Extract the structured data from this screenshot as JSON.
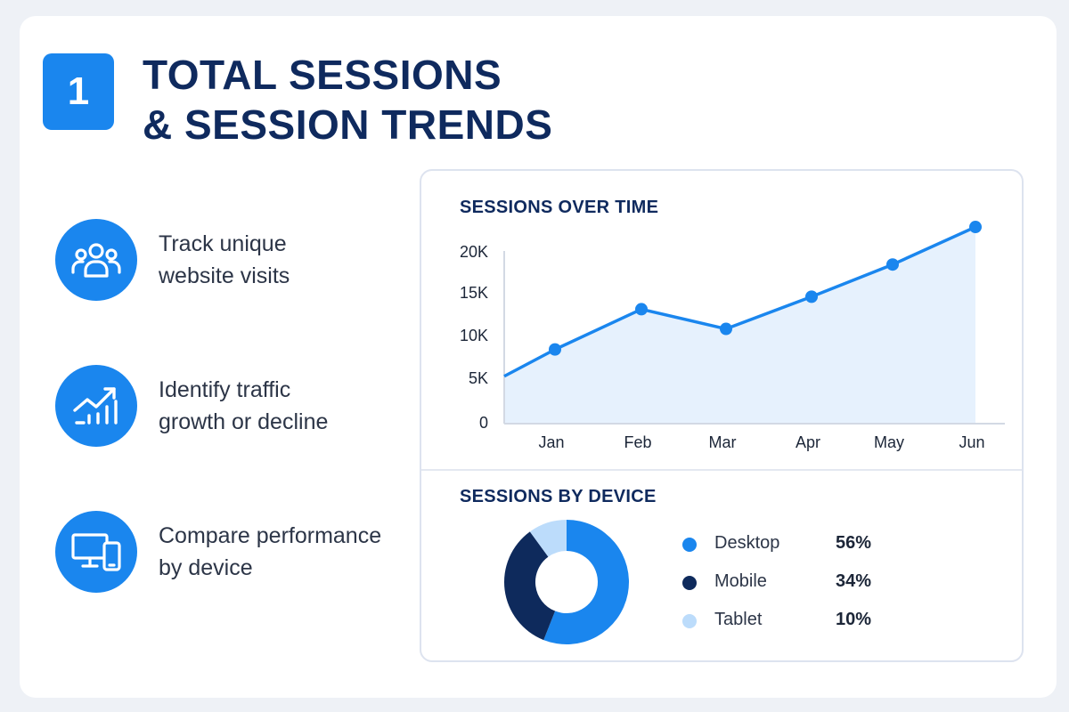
{
  "header": {
    "badge": "1",
    "title_line1": "TOTAL SESSIONS",
    "title_line2": "& SESSION TRENDS"
  },
  "features": [
    {
      "icon": "users-icon",
      "line1": "Track unique",
      "line2": "website visits"
    },
    {
      "icon": "trend-up-chart-icon",
      "line1": "Identify traffic",
      "line2": "growth or decline"
    },
    {
      "icon": "devices-icon",
      "line1": "Compare performance",
      "line2": "by device"
    }
  ],
  "colors": {
    "accent": "#1a86ee",
    "navy": "#0f2a5e",
    "desktop": "#1a86ee",
    "mobile": "#0e2a5c",
    "tablet": "#bcdcfb"
  },
  "chart_data": [
    {
      "type": "area",
      "title": "SESSIONS OVER TIME",
      "categories": [
        "Jan",
        "Feb",
        "Mar",
        "Apr",
        "May",
        "Jun"
      ],
      "values": [
        8300,
        12800,
        10600,
        14200,
        17800,
        22000
      ],
      "start_value": 5300,
      "yticks": [
        0,
        5000,
        10000,
        15000,
        20000
      ],
      "ytick_labels": [
        "0",
        "5K",
        "10K",
        "15K",
        "20K"
      ],
      "ylim": [
        0,
        22500
      ],
      "grid": false
    },
    {
      "type": "pie",
      "title": "SESSIONS BY DEVICE",
      "donut": true,
      "labels": [
        "Desktop",
        "Mobile",
        "Tablet"
      ],
      "values": [
        56,
        34,
        10
      ],
      "value_labels": [
        "56%",
        "34%",
        "10%"
      ],
      "legend": "right"
    }
  ]
}
